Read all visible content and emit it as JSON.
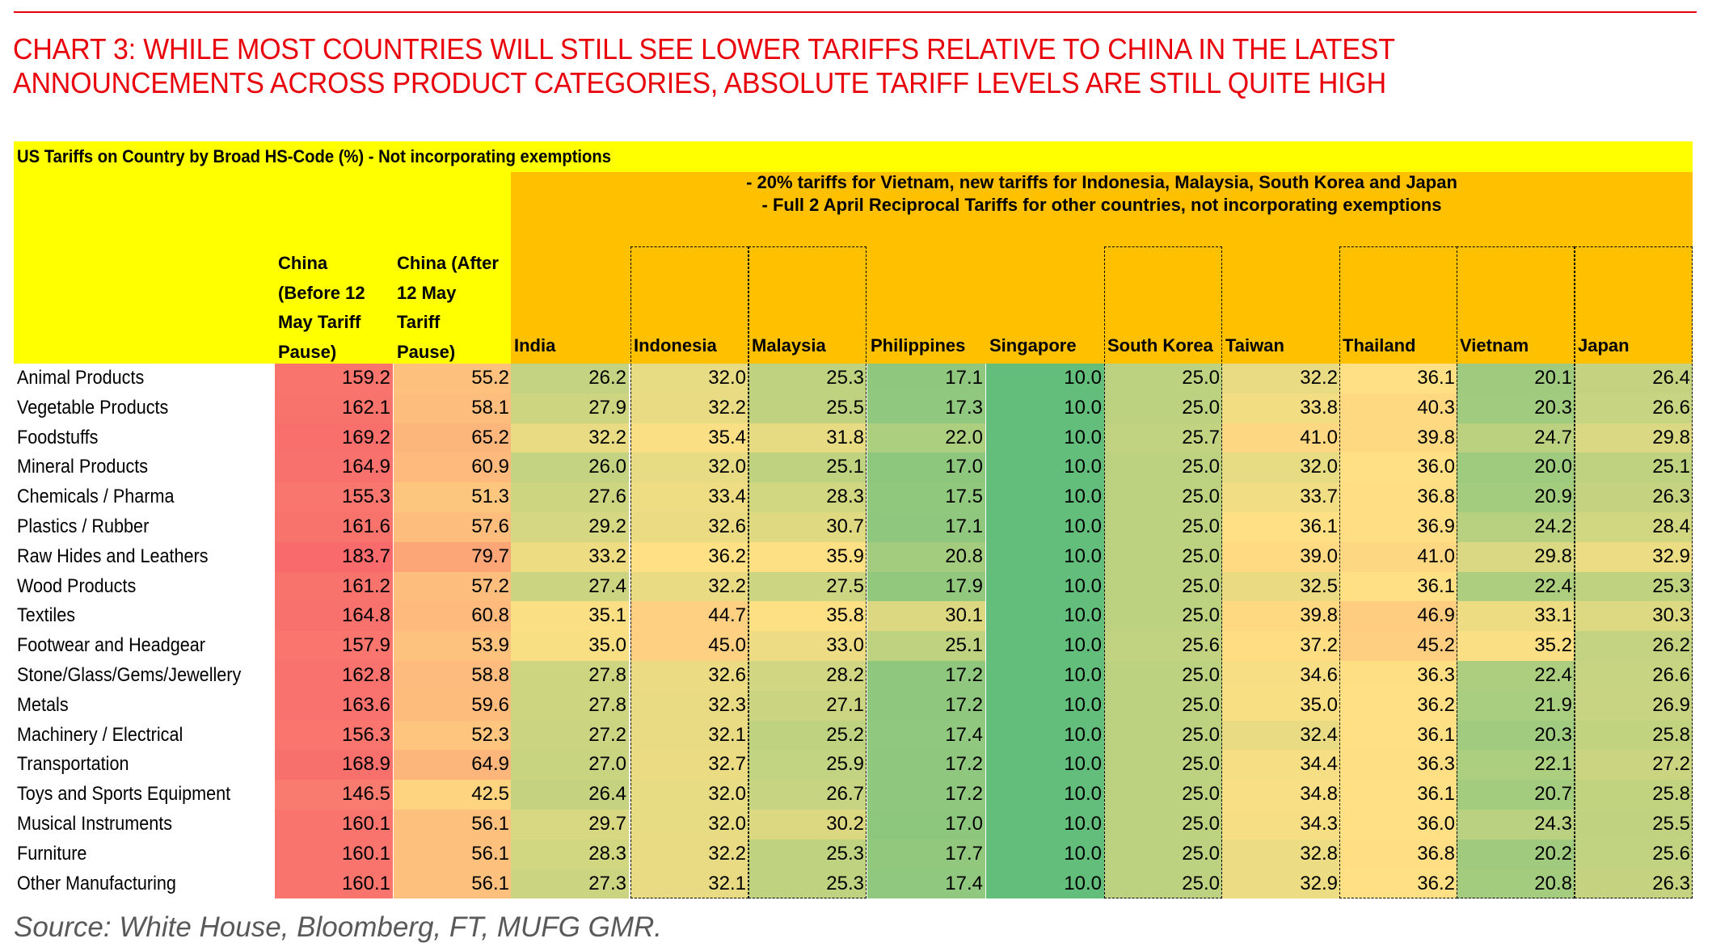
{
  "title_lines": [
    "CHART 3: WHILE MOST COUNTRIES WILL STILL SEE LOWER TARIFFS RELATIVE TO CHINA IN THE LATEST",
    "ANNOUNCEMENTS ACROSS PRODUCT CATEGORIES, ABSOLUTE TARIFF LEVELS ARE STILL QUITE HIGH"
  ],
  "source": "Source: White House, Bloomberg, FT, MUFG GMR.",
  "colors": {
    "title": "#e8000b",
    "header_yellow": "#ffff00",
    "header_orange": "#ffc000",
    "scale_low": "#63be7b",
    "scale_mid": "#ffe084",
    "scale_high": "#f8696b"
  },
  "chart_data": {
    "type": "table",
    "title": "US Tariffs on Country by Broad HS-Code (%) - Not incorporating exemptions",
    "notes": [
      "- 20% tariffs for Vietnam, new tariffs for Indonesia, Malaysia, South Korea and Japan",
      "- Full 2 April Reciprocal Tariffs for other countries, not incorporating exemptions"
    ],
    "china_headers": [
      [
        "China",
        "(Before 12",
        "May Tariff",
        "Pause)"
      ],
      [
        "China (After",
        "12 May",
        "Tariff",
        "Pause)"
      ]
    ],
    "columns": [
      "China (Before 12 May Tariff Pause)",
      "China (After 12 May Tariff Pause)",
      "India",
      "Indonesia",
      "Malaysia",
      "Philippines",
      "Singapore",
      "South Korea",
      "Taiwan",
      "Thailand",
      "Vietnam",
      "Japan"
    ],
    "country_headers": [
      "India",
      "Indonesia",
      "Malaysia",
      "Philippines",
      "Singapore",
      "South Korea",
      "Taiwan",
      "Thailand",
      "Vietnam",
      "Japan"
    ],
    "highlighted_columns": [
      "Indonesia",
      "Malaysia",
      "South Korea",
      "Thailand",
      "Vietnam",
      "Japan"
    ],
    "rows": [
      {
        "label": "Animal Products",
        "values": [
          159.2,
          55.2,
          26.2,
          32.0,
          25.3,
          17.1,
          10.0,
          25.0,
          32.2,
          36.1,
          20.1,
          26.4
        ]
      },
      {
        "label": "Vegetable Products",
        "values": [
          162.1,
          58.1,
          27.9,
          32.2,
          25.5,
          17.3,
          10.0,
          25.0,
          33.8,
          40.3,
          20.3,
          26.6
        ]
      },
      {
        "label": "Foodstuffs",
        "values": [
          169.2,
          65.2,
          32.2,
          35.4,
          31.8,
          22.0,
          10.0,
          25.7,
          41.0,
          39.8,
          24.7,
          29.8
        ]
      },
      {
        "label": "Mineral Products",
        "values": [
          164.9,
          60.9,
          26.0,
          32.0,
          25.1,
          17.0,
          10.0,
          25.0,
          32.0,
          36.0,
          20.0,
          25.1
        ]
      },
      {
        "label": "Chemicals / Pharma",
        "values": [
          155.3,
          51.3,
          27.6,
          33.4,
          28.3,
          17.5,
          10.0,
          25.0,
          33.7,
          36.8,
          20.9,
          26.3
        ]
      },
      {
        "label": "Plastics / Rubber",
        "values": [
          161.6,
          57.6,
          29.2,
          32.6,
          30.7,
          17.1,
          10.0,
          25.0,
          36.1,
          36.9,
          24.2,
          28.4
        ]
      },
      {
        "label": "Raw Hides and Leathers",
        "values": [
          183.7,
          79.7,
          33.2,
          36.2,
          35.9,
          20.8,
          10.0,
          25.0,
          39.0,
          41.0,
          29.8,
          32.9
        ]
      },
      {
        "label": "Wood Products",
        "values": [
          161.2,
          57.2,
          27.4,
          32.2,
          27.5,
          17.9,
          10.0,
          25.0,
          32.5,
          36.1,
          22.4,
          25.3
        ]
      },
      {
        "label": "Textiles",
        "values": [
          164.8,
          60.8,
          35.1,
          44.7,
          35.8,
          30.1,
          10.0,
          25.0,
          39.8,
          46.9,
          33.1,
          30.3
        ]
      },
      {
        "label": "Footwear and Headgear",
        "values": [
          157.9,
          53.9,
          35.0,
          45.0,
          33.0,
          25.1,
          10.0,
          25.6,
          37.2,
          45.2,
          35.2,
          26.2
        ]
      },
      {
        "label": "Stone/Glass/Gems/Jewellery",
        "values": [
          162.8,
          58.8,
          27.8,
          32.6,
          28.2,
          17.2,
          10.0,
          25.0,
          34.6,
          36.3,
          22.4,
          26.6
        ]
      },
      {
        "label": "Metals",
        "values": [
          163.6,
          59.6,
          27.8,
          32.3,
          27.1,
          17.2,
          10.0,
          25.0,
          35.0,
          36.2,
          21.9,
          26.9
        ]
      },
      {
        "label": "Machinery / Electrical",
        "values": [
          156.3,
          52.3,
          27.2,
          32.1,
          25.2,
          17.4,
          10.0,
          25.0,
          32.4,
          36.1,
          20.3,
          25.8
        ]
      },
      {
        "label": "Transportation",
        "values": [
          168.9,
          64.9,
          27.0,
          32.7,
          25.9,
          17.2,
          10.0,
          25.0,
          34.4,
          36.3,
          22.1,
          27.2
        ]
      },
      {
        "label": "Toys and Sports Equipment",
        "values": [
          146.5,
          42.5,
          26.4,
          32.0,
          26.7,
          17.2,
          10.0,
          25.0,
          34.8,
          36.1,
          20.7,
          25.8
        ]
      },
      {
        "label": "Musical Instruments",
        "values": [
          160.1,
          56.1,
          29.7,
          32.0,
          30.2,
          17.0,
          10.0,
          25.0,
          34.3,
          36.0,
          24.3,
          25.5
        ]
      },
      {
        "label": "Furniture",
        "values": [
          160.1,
          56.1,
          28.3,
          32.2,
          25.3,
          17.7,
          10.0,
          25.0,
          32.8,
          36.8,
          20.2,
          25.6
        ]
      },
      {
        "label": "Other Manufacturing",
        "values": [
          160.1,
          56.1,
          27.3,
          32.1,
          25.3,
          17.4,
          10.0,
          25.0,
          32.9,
          36.2,
          20.8,
          26.3
        ]
      }
    ]
  }
}
